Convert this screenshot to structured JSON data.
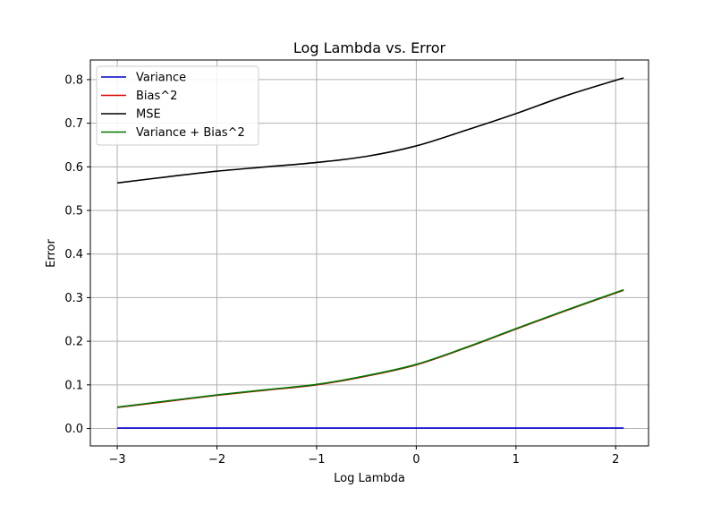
{
  "chart_data": {
    "type": "line",
    "title": "Log Lambda vs. Error",
    "xlabel": "Log Lambda",
    "ylabel": "Error",
    "xlim": [
      -3.27,
      2.33
    ],
    "ylim": [
      -0.04,
      0.845
    ],
    "xticks": [
      -3,
      -2,
      -1,
      0,
      1,
      2
    ],
    "xtick_labels": [
      "−3",
      "−2",
      "−1",
      "0",
      "1",
      "2"
    ],
    "yticks": [
      0.0,
      0.1,
      0.2,
      0.3,
      0.4,
      0.5,
      0.6,
      0.7,
      0.8
    ],
    "ytick_labels": [
      "0.0",
      "0.1",
      "0.2",
      "0.3",
      "0.4",
      "0.5",
      "0.6",
      "0.7",
      "0.8"
    ],
    "grid": true,
    "legend_position": "top-left",
    "x": [
      -3.0,
      -2.5,
      -2.0,
      -1.5,
      -1.0,
      -0.5,
      0.0,
      0.5,
      1.0,
      1.5,
      2.08
    ],
    "series": [
      {
        "name": "Variance",
        "color": "#0000cc",
        "values": [
          0.001,
          0.001,
          0.001,
          0.001,
          0.001,
          0.001,
          0.001,
          0.001,
          0.001,
          0.001,
          0.001
        ]
      },
      {
        "name": "Bias^2",
        "color": "#dd0000",
        "values": [
          0.048,
          0.062,
          0.076,
          0.088,
          0.1,
          0.12,
          0.146,
          0.185,
          0.228,
          0.27,
          0.317
        ]
      },
      {
        "name": "MSE",
        "color": "#000000",
        "values": [
          0.563,
          0.577,
          0.59,
          0.6,
          0.61,
          0.624,
          0.648,
          0.684,
          0.722,
          0.763,
          0.804
        ]
      },
      {
        "name": "Variance + Bias^2",
        "color": "#007700",
        "values": [
          0.049,
          0.063,
          0.077,
          0.089,
          0.101,
          0.121,
          0.147,
          0.186,
          0.229,
          0.271,
          0.318
        ]
      }
    ]
  }
}
